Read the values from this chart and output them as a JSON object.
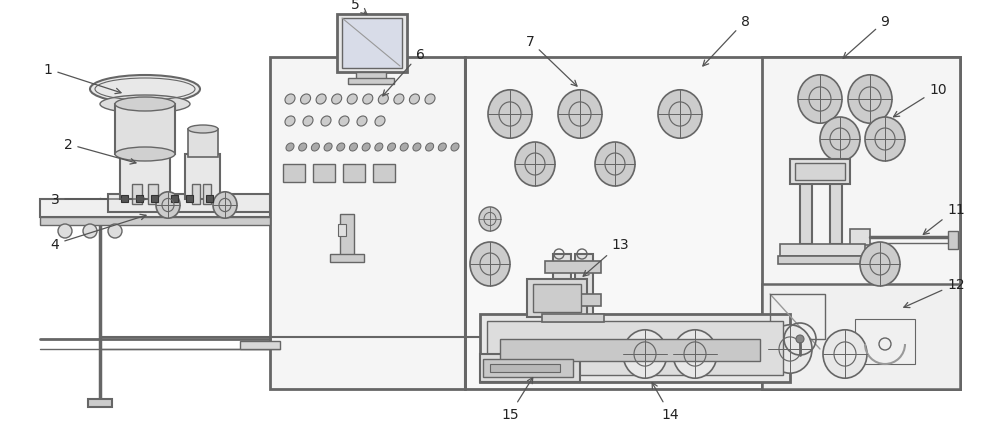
{
  "bg_color": "#ffffff",
  "line_color": "#999999",
  "dark_line": "#666666",
  "light_gray": "#cccccc",
  "mid_gray": "#aaaaaa",
  "arrow_color": "#555555",
  "label_color": "#222222",
  "label_size": 10
}
